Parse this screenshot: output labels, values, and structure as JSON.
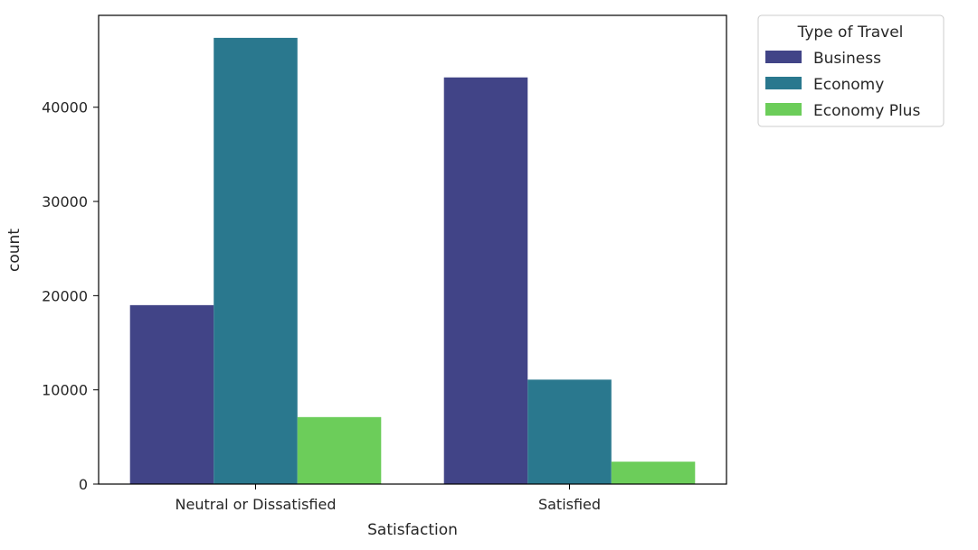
{
  "chart_data": {
    "type": "bar",
    "categories": [
      "Neutral or Dissatisfied",
      "Satisfied"
    ],
    "series": [
      {
        "name": "Business",
        "values": [
          18994,
          43166
        ],
        "color": "#414487"
      },
      {
        "name": "Economy",
        "values": [
          47366,
          11086
        ],
        "color": "#2a788e"
      },
      {
        "name": "Economy Plus",
        "values": [
          7111,
          2377
        ],
        "color": "#6ccd5a"
      }
    ],
    "title": "",
    "xlabel": "Satisfaction",
    "ylabel": "count",
    "ylim": [
      0,
      49753
    ],
    "yticks": [
      0,
      10000,
      20000,
      30000,
      40000
    ],
    "grid": false,
    "legend": {
      "title": "Type of Travel",
      "placement": "outside-top-right"
    }
  }
}
